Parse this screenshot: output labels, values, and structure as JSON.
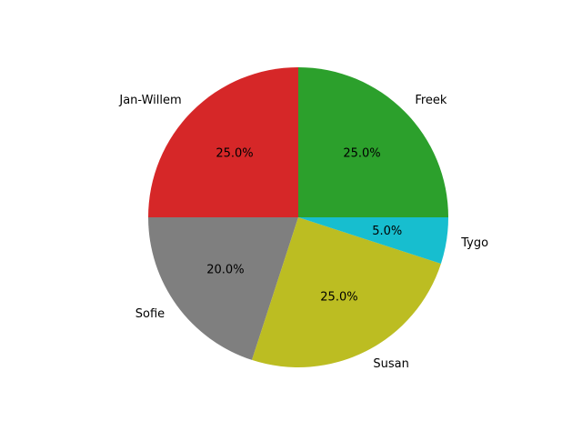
{
  "chart_data": {
    "type": "pie",
    "title": "",
    "start_angle_deg": 90,
    "direction": "counterclockwise",
    "slices": [
      {
        "label": "Jan-Willem",
        "value": 25.0,
        "pct_label": "25.0%",
        "color": "#d62728"
      },
      {
        "label": "Sofie",
        "value": 20.0,
        "pct_label": "20.0%",
        "color": "#7f7f7f"
      },
      {
        "label": "Susan",
        "value": 25.0,
        "pct_label": "25.0%",
        "color": "#bcbd22"
      },
      {
        "label": "Tygo",
        "value": 5.0,
        "pct_label": "5.0%",
        "color": "#17becf"
      },
      {
        "label": "Freek",
        "value": 25.0,
        "pct_label": "25.0%",
        "color": "#2ca02c"
      }
    ]
  }
}
